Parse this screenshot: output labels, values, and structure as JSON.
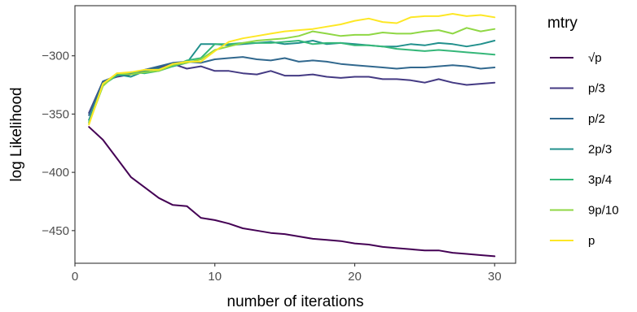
{
  "chart_data": {
    "type": "line",
    "xlabel": "number of iterations",
    "ylabel": "log Likelihood",
    "xlim": [
      0,
      31.5
    ],
    "ylim": [
      -478,
      -257
    ],
    "xticks": [
      0,
      10,
      20,
      30
    ],
    "yticks": [
      -450,
      -400,
      -350,
      -300
    ],
    "legend_title": "mtry",
    "legend_position": "right",
    "grid": false,
    "x": [
      1,
      2,
      3,
      4,
      5,
      6,
      7,
      8,
      9,
      10,
      11,
      12,
      13,
      14,
      15,
      16,
      17,
      18,
      19,
      20,
      21,
      22,
      23,
      24,
      25,
      26,
      27,
      28,
      29,
      30
    ],
    "series": [
      {
        "name": "√p",
        "color": "#440154",
        "values": [
          -361,
          -372,
          -388,
          -404,
          -413,
          -422,
          -428,
          -429,
          -439,
          -441,
          -444,
          -448,
          -450,
          -452,
          -453,
          -455,
          -457,
          -458,
          -459,
          -461,
          -462,
          -464,
          -465,
          -466,
          -467,
          -467,
          -469,
          -470,
          -471,
          -472
        ]
      },
      {
        "name": "p/3",
        "color": "#443A83",
        "values": [
          -349,
          -322,
          -318,
          -316,
          -312,
          -310,
          -307,
          -311,
          -309,
          -313,
          -313,
          -315,
          -316,
          -313,
          -317,
          -317,
          -316,
          -318,
          -319,
          -318,
          -318,
          -320,
          -320,
          -321,
          -323,
          -320,
          -323,
          -325,
          -324,
          -323
        ]
      },
      {
        "name": "p/2",
        "color": "#31688E",
        "values": [
          -351,
          -322,
          -317,
          -315,
          -312,
          -309,
          -306,
          -305,
          -306,
          -303,
          -302,
          -301,
          -303,
          -304,
          -302,
          -305,
          -304,
          -305,
          -307,
          -308,
          -309,
          -310,
          -311,
          -310,
          -310,
          -309,
          -308,
          -309,
          -311,
          -310
        ]
      },
      {
        "name": "2p/3",
        "color": "#21908C",
        "values": [
          -355,
          -325,
          -316,
          -318,
          -313,
          -311,
          -309,
          -306,
          -290,
          -290,
          -291,
          -290,
          -289,
          -288,
          -290,
          -289,
          -287,
          -290,
          -289,
          -290,
          -291,
          -292,
          -292,
          -290,
          -291,
          -289,
          -290,
          -292,
          -290,
          -287
        ]
      },
      {
        "name": "3p/4",
        "color": "#35B779",
        "values": [
          -357,
          -325,
          -317,
          -314,
          -315,
          -313,
          -309,
          -304,
          -302,
          -290,
          -290,
          -289,
          -289,
          -289,
          -288,
          -287,
          -290,
          -289,
          -289,
          -291,
          -291,
          -292,
          -294,
          -295,
          -296,
          -295,
          -296,
          -297,
          -298,
          -299
        ]
      },
      {
        "name": "9p/10",
        "color": "#8FD744",
        "values": [
          -358,
          -326,
          -315,
          -316,
          -314,
          -313,
          -308,
          -306,
          -303,
          -295,
          -292,
          -289,
          -287,
          -286,
          -285,
          -283,
          -279,
          -281,
          -283,
          -282,
          -282,
          -280,
          -281,
          -281,
          -279,
          -278,
          -281,
          -276,
          -279,
          -277
        ]
      },
      {
        "name": "p",
        "color": "#FDE725",
        "values": [
          -359,
          -324,
          -315,
          -314,
          -312,
          -312,
          -307,
          -305,
          -305,
          -296,
          -288,
          -285,
          -283,
          -281,
          -279,
          -278,
          -277,
          -275,
          -273,
          -270,
          -268,
          -271,
          -272,
          -267,
          -266,
          -266,
          -264,
          -266,
          -265,
          -267
        ]
      }
    ]
  }
}
